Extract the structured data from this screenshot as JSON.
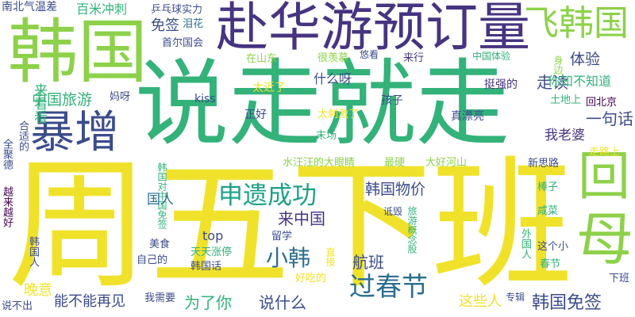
{
  "palette": {
    "yellow": "#f0e22a",
    "lime": "#8dd14a",
    "green": "#33b27a",
    "teal": "#1fa187",
    "blue": "#2c6e8e",
    "navy": "#3b4c8b",
    "indigo": "#463480",
    "purple": "#440154"
  },
  "words": [
    {
      "text": "说走就走",
      "color": "green"
    },
    {
      "text": "周五下班",
      "color": "yellow"
    },
    {
      "text": "韩国",
      "color": "lime"
    },
    {
      "text": "赴华游预订量",
      "color": "indigo"
    },
    {
      "text": "暴增",
      "color": "navy"
    },
    {
      "text": "飞韩国",
      "color": "lime"
    },
    {
      "text": "回",
      "color": "lime"
    },
    {
      "text": "母",
      "color": "lime"
    },
    {
      "text": "申遗成功",
      "color": "teal"
    },
    {
      "text": "过春节",
      "color": "blue"
    },
    {
      "text": "小韩",
      "color": "blue"
    },
    {
      "text": "韩国免签",
      "color": "navy"
    },
    {
      "text": "南北气温差",
      "color": "navy"
    },
    {
      "text": "百米冲刺",
      "color": "green"
    },
    {
      "text": "乒乓球实力",
      "color": "navy"
    },
    {
      "text": "泪花",
      "color": "blue"
    },
    {
      "text": "免签",
      "color": "navy"
    },
    {
      "text": "首尔国会",
      "color": "navy"
    },
    {
      "text": "在山东",
      "color": "lime"
    },
    {
      "text": "很羡慕",
      "color": "lime"
    },
    {
      "text": "悠看",
      "color": "navy"
    },
    {
      "text": "来行",
      "color": "indigo"
    },
    {
      "text": "中国体验",
      "color": "green"
    },
    {
      "text": "身边",
      "color": "lime"
    },
    {
      "text": "体验",
      "color": "navy"
    },
    {
      "text": "走读",
      "color": "navy"
    },
    {
      "text": "挺强的",
      "color": "indigo"
    },
    {
      "text": "你知不知道",
      "color": "green"
    },
    {
      "text": "什么呀",
      "color": "navy"
    },
    {
      "text": "太近了",
      "color": "yellow"
    },
    {
      "text": "中国旅游",
      "color": "green"
    },
    {
      "text": "妈呀",
      "color": "navy"
    },
    {
      "text": "孩子",
      "color": "navy"
    },
    {
      "text": "kiss",
      "color": "navy"
    },
    {
      "text": "正好",
      "color": "navy"
    },
    {
      "text": "土地上",
      "color": "green"
    },
    {
      "text": "回北京",
      "color": "purple"
    },
    {
      "text": "一句话",
      "color": "navy"
    },
    {
      "text": "太刺激了",
      "color": "yellow"
    },
    {
      "text": "真漂亮",
      "color": "navy"
    },
    {
      "text": "来看看",
      "color": "green"
    },
    {
      "text": "我老婆",
      "color": "indigo"
    },
    {
      "text": "走路上",
      "color": "yellow"
    },
    {
      "text": "末场",
      "color": "green"
    },
    {
      "text": "水汪汪的大眼睛",
      "color": "lime"
    },
    {
      "text": "最硬",
      "color": "lime"
    },
    {
      "text": "大好河山",
      "color": "lime"
    },
    {
      "text": "新思路",
      "color": "navy"
    },
    {
      "text": "全聚德",
      "color": "navy"
    },
    {
      "text": "合适的",
      "color": "navy"
    },
    {
      "text": "越来越好",
      "color": "purple"
    },
    {
      "text": "韩国对中国免签",
      "color": "green"
    },
    {
      "text": "国人",
      "color": "blue"
    },
    {
      "text": "来中国",
      "color": "indigo"
    },
    {
      "text": "韩国物价",
      "color": "navy"
    },
    {
      "text": "诋毁",
      "color": "navy"
    },
    {
      "text": "旅游概念股",
      "color": "green"
    },
    {
      "text": "棒子",
      "color": "green"
    },
    {
      "text": "咸菜",
      "color": "green"
    },
    {
      "text": "top",
      "color": "navy"
    },
    {
      "text": "留学",
      "color": "navy"
    },
    {
      "text": "美食",
      "color": "navy"
    },
    {
      "text": "韩国人",
      "color": "navy"
    },
    {
      "text": "自己的",
      "color": "navy"
    },
    {
      "text": "天天涨停",
      "color": "green"
    },
    {
      "text": "直接",
      "color": "yellow"
    },
    {
      "text": "航班",
      "color": "navy"
    },
    {
      "text": "外国人",
      "color": "green"
    },
    {
      "text": "这个小",
      "color": "navy"
    },
    {
      "text": "春节",
      "color": "green"
    },
    {
      "text": "韩国话",
      "color": "navy"
    },
    {
      "text": "好吃的",
      "color": "yellow"
    },
    {
      "text": "晚意",
      "color": "yellow"
    },
    {
      "text": "能不能再见",
      "color": "navy"
    },
    {
      "text": "为了你",
      "color": "green"
    },
    {
      "text": "说什么",
      "color": "navy"
    },
    {
      "text": "这些人",
      "color": "yellow"
    },
    {
      "text": "专辑",
      "color": "navy"
    },
    {
      "text": "下班",
      "color": "navy"
    },
    {
      "text": "我需要",
      "color": "navy"
    },
    {
      "text": "说不出",
      "color": "navy"
    }
  ]
}
